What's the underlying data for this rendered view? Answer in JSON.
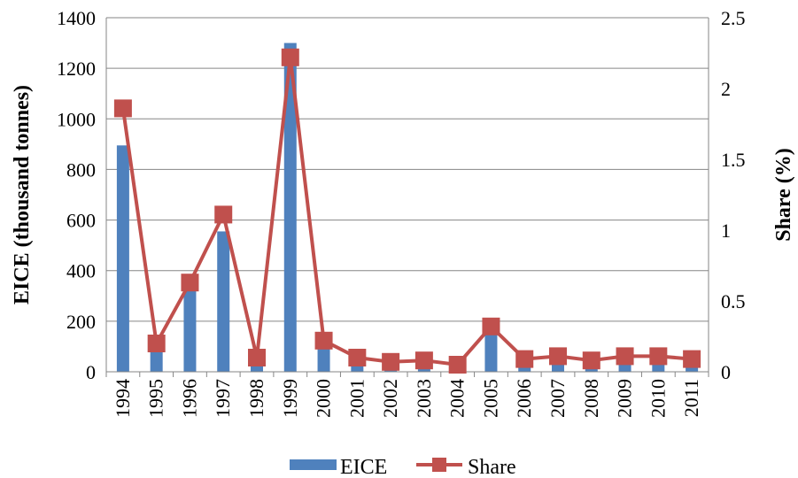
{
  "chart_data": {
    "type": "bar",
    "categories": [
      "1994",
      "1995",
      "1996",
      "1997",
      "1998",
      "1999",
      "2000",
      "2001",
      "2002",
      "2003",
      "2004",
      "2005",
      "2006",
      "2007",
      "2008",
      "2009",
      "2010",
      "2011"
    ],
    "series": [
      {
        "name": "EICE",
        "type": "bar",
        "axis": "left",
        "color": "#4F81BD",
        "values": [
          895,
          90,
          335,
          555,
          45,
          1300,
          110,
          40,
          20,
          25,
          15,
          165,
          35,
          50,
          35,
          45,
          50,
          40
        ]
      },
      {
        "name": "Share",
        "type": "line",
        "axis": "right",
        "color": "#C0504D",
        "marker": "square",
        "values": [
          1.86,
          0.2,
          0.63,
          1.11,
          0.1,
          2.22,
          0.22,
          0.1,
          0.07,
          0.08,
          0.05,
          0.32,
          0.09,
          0.11,
          0.08,
          0.11,
          0.11,
          0.09
        ]
      }
    ],
    "y_left": {
      "label": "EICE (thousand tonnes)",
      "ylim": [
        0,
        1400
      ],
      "ticks": [
        "0",
        "200",
        "400",
        "600",
        "800",
        "1000",
        "1200",
        "1400"
      ]
    },
    "y_right": {
      "label": "Share (%)",
      "ylim": [
        0,
        2.5
      ],
      "ticks": [
        "0",
        "0.5",
        "1",
        "1.5",
        "2",
        "2.5"
      ]
    },
    "grid": true,
    "legend_position": "bottom",
    "colors": {
      "bar": "#4F81BD",
      "line": "#C0504D",
      "grid": "#868686"
    }
  }
}
